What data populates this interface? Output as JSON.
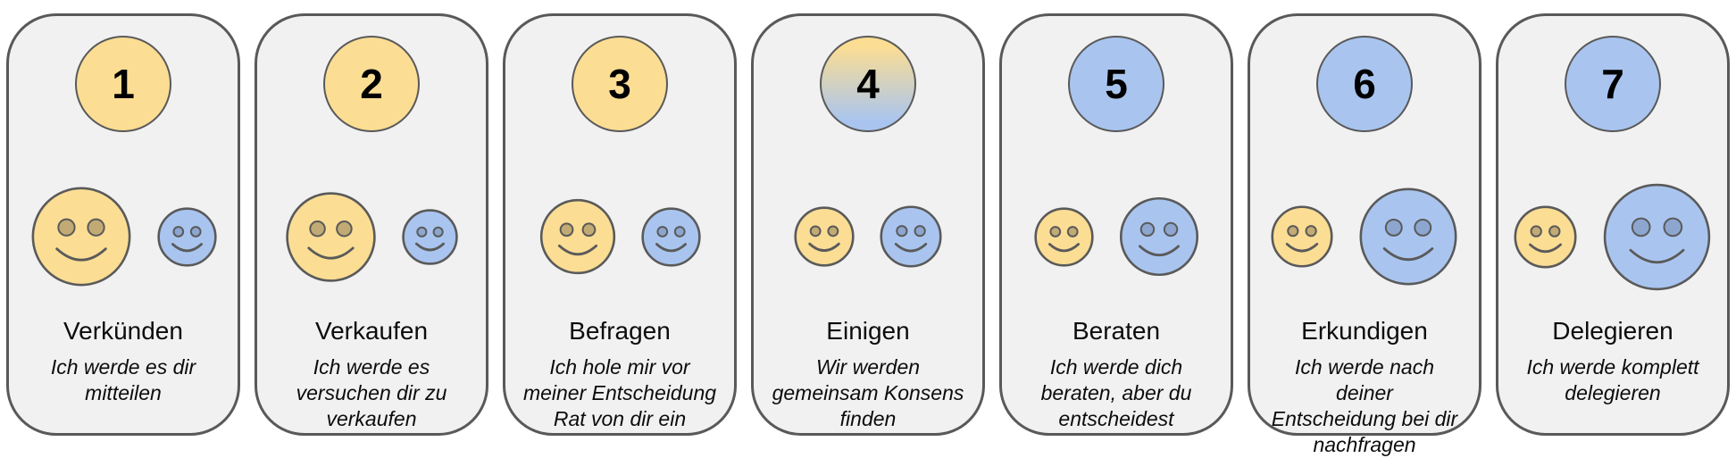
{
  "colors": {
    "manager_face": "#FBDD94",
    "manager_eye": "#C2AA74",
    "team_face": "#A9C5EF",
    "team_eye": "#8CA6CF",
    "outline": "#5A5A5A",
    "card_background": "#F1F1F2",
    "card_border": "#595959"
  },
  "cards": [
    {
      "number": "1",
      "badge_style": "yellow",
      "title": "Verkünden",
      "subtitle": "Ich werde es dir\nmitteilen",
      "manager_face_size": 114,
      "team_face_size": 67
    },
    {
      "number": "2",
      "badge_style": "yellow",
      "title": "Verkaufen",
      "subtitle": "Ich werde es\nversuchen dir zu\nverkaufen",
      "manager_face_size": 103,
      "team_face_size": 63
    },
    {
      "number": "3",
      "badge_style": "yellow",
      "title": "Befragen",
      "subtitle": "Ich hole mir vor\nmeiner Entscheidung\nRat von dir ein",
      "manager_face_size": 86,
      "team_face_size": 67
    },
    {
      "number": "4",
      "badge_style": "gradient",
      "title": "Einigen",
      "subtitle": "Wir werden\ngemeinsam Konsens\nfinden",
      "manager_face_size": 68,
      "team_face_size": 70
    },
    {
      "number": "5",
      "badge_style": "blue",
      "title": "Beraten",
      "subtitle": "Ich werde dich\nberaten, aber du\nentscheidest",
      "manager_face_size": 67,
      "team_face_size": 90
    },
    {
      "number": "6",
      "badge_style": "blue",
      "title": "Erkundigen",
      "subtitle": "Ich werde nach deiner\nEntscheidung bei dir\nnachfragen",
      "manager_face_size": 70,
      "team_face_size": 112
    },
    {
      "number": "7",
      "badge_style": "blue",
      "title": "Delegieren",
      "subtitle": "Ich werde komplett\ndelegieren",
      "manager_face_size": 71,
      "team_face_size": 123
    }
  ]
}
